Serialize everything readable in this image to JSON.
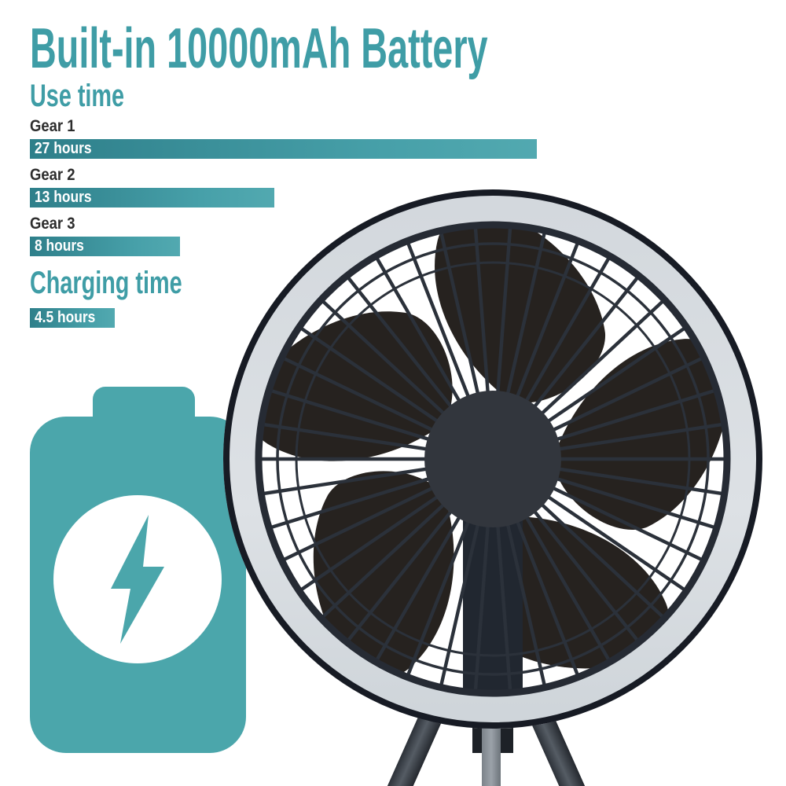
{
  "chart_data": {
    "type": "bar",
    "orientation": "horizontal",
    "title": "Built-in 10000mAh Battery",
    "unit": "hours",
    "xmax": 27,
    "sections": [
      {
        "section": "Use time",
        "rows": [
          {
            "category": "Gear 1",
            "value": 27,
            "label": "27 hours"
          },
          {
            "category": "Gear 2",
            "value": 13,
            "label": "13 hours"
          },
          {
            "category": "Gear 3",
            "value": 8,
            "label": "8 hours"
          }
        ]
      },
      {
        "section": "Charging time",
        "rows": [
          {
            "category": "",
            "value": 4.5,
            "label": "4.5 hours"
          }
        ]
      }
    ]
  },
  "icons": {
    "battery": "battery-charging-icon",
    "bolt": "lightning-bolt-icon"
  },
  "product_image": {
    "alt": "Black portable circular fan with white LED ring light standing on tripod legs"
  },
  "colors": {
    "accent_teal": "#3f9da6",
    "battery_teal": "#4ba6ab",
    "bar_gradient_left": "#2e7f8a",
    "bar_gradient_right": "#52a9b0",
    "category_text": "#2d2d2d",
    "bar_text": "#ffffff",
    "fan_dark": "#262b34",
    "fan_blade": "#26221f",
    "led_ring": "#d8dce1",
    "background": "#ffffff"
  }
}
